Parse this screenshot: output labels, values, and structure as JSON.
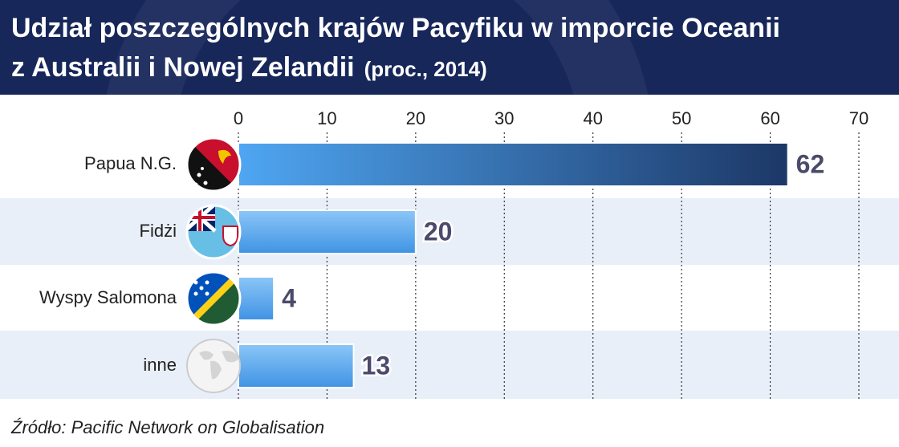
{
  "chart_data": {
    "type": "bar",
    "orientation": "horizontal",
    "title": [
      "Udział poszczególnych krajów Pacyfiku w imporcie Oceanii",
      "z Australii i Nowej Zelandii"
    ],
    "subtitle": "(proc., 2014)",
    "categories": [
      "Papua N.G.",
      "Fidżi",
      "Wyspy Salomona",
      "inne"
    ],
    "values": [
      62,
      20,
      4,
      13
    ],
    "colors": [
      "#1c3766",
      "#3f93e4",
      "#3f93e4",
      "#3f93e4"
    ],
    "xlim": [
      0,
      70
    ],
    "xticks": [
      0,
      10,
      20,
      30,
      40,
      50,
      60,
      70
    ],
    "grid": true,
    "source": "Źródło: Pacific Network on Globalisation"
  }
}
